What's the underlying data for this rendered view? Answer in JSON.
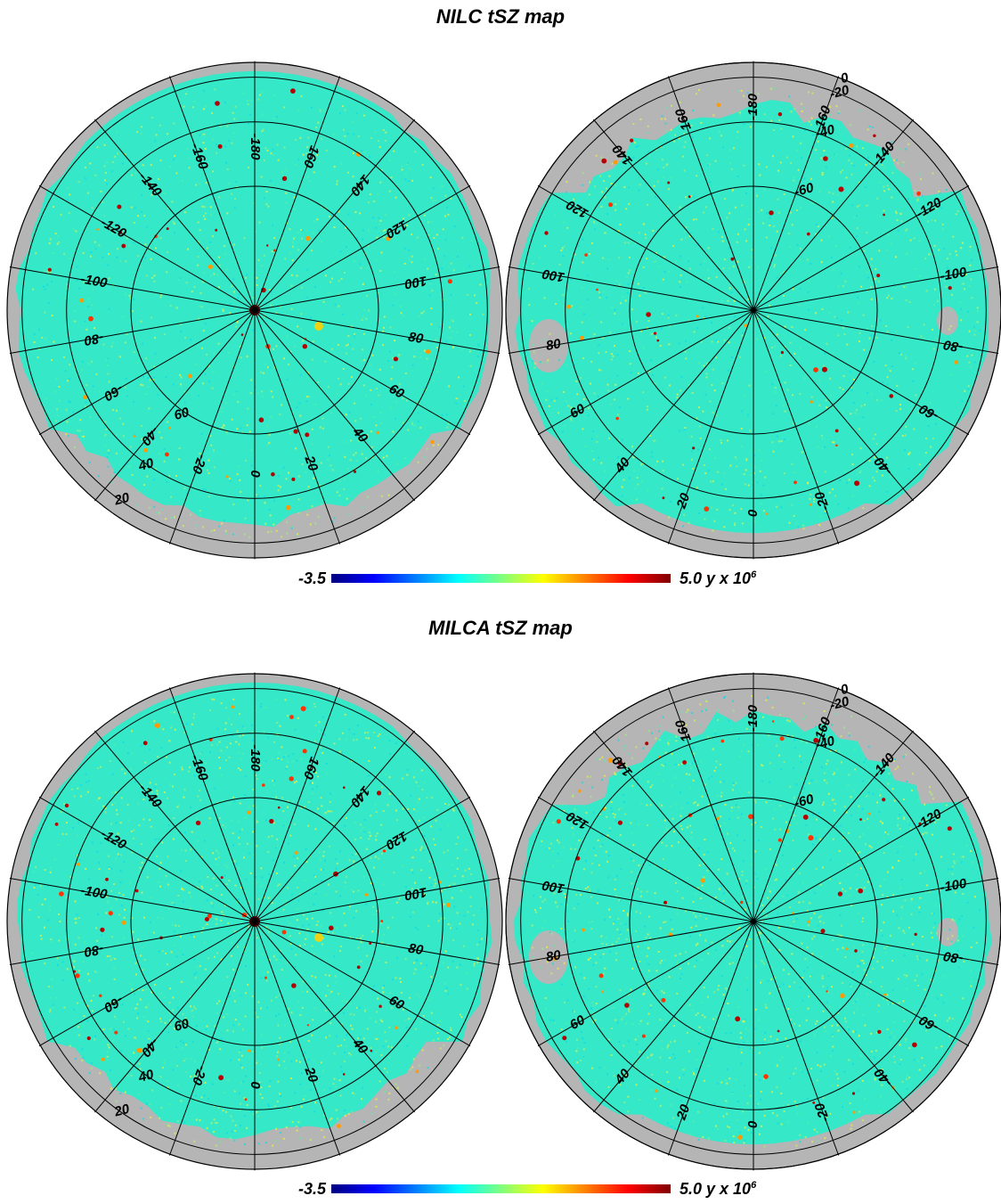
{
  "colors": {
    "sky_base": "#34e8c8",
    "mask_gray": "#b5b5b5",
    "outline": "#000000",
    "colormap": [
      "#00007f",
      "#0000ff",
      "#007fff",
      "#00ffff",
      "#7fff7f",
      "#ffff00",
      "#ff7f00",
      "#ff0000",
      "#7f0000"
    ]
  },
  "colormap_name": "jet",
  "projection": "orthographic polar",
  "panels": [
    {
      "title": "NILC tSZ map",
      "colorbar": {
        "min": "-3.5",
        "max_prefix": "5.0 y x 10",
        "max_exp": "6"
      },
      "hemispheres": [
        {
          "name": "north",
          "lat_labels": [
            "20",
            "40",
            "60"
          ],
          "lon_labels": [
            "-180",
            "-160",
            "-140",
            "-120",
            "-100",
            "-80",
            "-60",
            "-40",
            "-20",
            "0",
            "20",
            "40",
            "60",
            "80",
            "100",
            "120",
            "140",
            "160"
          ]
        },
        {
          "name": "south",
          "lat_labels": [
            "0",
            "-20",
            "-40",
            "-60"
          ],
          "lon_labels": [
            "-180",
            "-160",
            "-140",
            "-120",
            "-100",
            "-80",
            "-60",
            "-40",
            "-20",
            "0",
            "20",
            "40",
            "60",
            "80",
            "100",
            "120",
            "140",
            "160"
          ]
        }
      ]
    },
    {
      "title": "MILCA tSZ map",
      "colorbar": {
        "min": "-3.5",
        "max_prefix": "5.0 y x 10",
        "max_exp": "6"
      },
      "hemispheres": [
        {
          "name": "north",
          "lat_labels": [
            "20",
            "40",
            "60"
          ],
          "lon_labels": [
            "-180",
            "-160",
            "-140",
            "-120",
            "-100",
            "-80",
            "-60",
            "-40",
            "-20",
            "0",
            "20",
            "40",
            "60",
            "80",
            "100",
            "120",
            "140",
            "160"
          ]
        },
        {
          "name": "south",
          "lat_labels": [
            "0",
            "-20",
            "-40",
            "-60"
          ],
          "lon_labels": [
            "-180",
            "-160",
            "-140",
            "-120",
            "-100",
            "-80",
            "-60",
            "-40",
            "-20",
            "0",
            "20",
            "40",
            "60",
            "80",
            "100",
            "120",
            "140",
            "160"
          ]
        }
      ]
    }
  ]
}
